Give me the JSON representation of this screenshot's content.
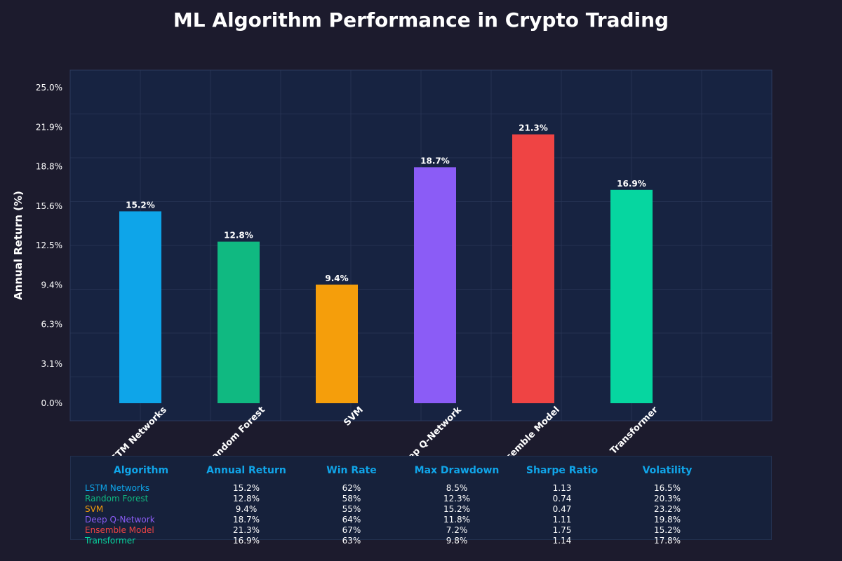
{
  "colors": {
    "background": "#1c1b2d",
    "plot_bg": "#172341",
    "grid": "#2a3858",
    "header": "#10a5e9"
  },
  "chart_data": {
    "type": "bar",
    "title": "ML Algorithm Performance in Crypto Trading",
    "xlabel": "",
    "ylabel": "Annual Return (%)",
    "ylim": [
      0,
      25
    ],
    "yticks": [
      "0.0%",
      "3.1%",
      "6.3%",
      "9.4%",
      "12.5%",
      "15.6%",
      "18.8%",
      "21.9%",
      "25.0%"
    ],
    "categories": [
      "LSTM Networks",
      "Random Forest",
      "SVM",
      "Deep Q-Network",
      "Ensemble Model",
      "Transformer"
    ],
    "values": [
      15.2,
      12.8,
      9.4,
      18.7,
      21.3,
      16.9
    ],
    "data_labels": [
      "15.2%",
      "12.8%",
      "9.4%",
      "18.7%",
      "21.3%",
      "16.9%"
    ],
    "bar_colors": [
      "#0ea5e9",
      "#10b981",
      "#f59e0b",
      "#8b5cf6",
      "#ef4444",
      "#06d6a0"
    ],
    "grid": true
  },
  "table": {
    "headers": [
      "Algorithm",
      "Annual Return",
      "Win Rate",
      "Max Drawdown",
      "Sharpe Ratio",
      "Volatility"
    ],
    "rows": [
      [
        "LSTM Networks",
        "15.2%",
        "62%",
        "8.5%",
        "1.13",
        "16.5%"
      ],
      [
        "Random Forest",
        "12.8%",
        "58%",
        "12.3%",
        "0.74",
        "20.3%"
      ],
      [
        "SVM",
        "9.4%",
        "55%",
        "15.2%",
        "0.47",
        "23.2%"
      ],
      [
        "Deep Q-Network",
        "18.7%",
        "64%",
        "11.8%",
        "1.11",
        "19.8%"
      ],
      [
        "Ensemble Model",
        "21.3%",
        "67%",
        "7.2%",
        "1.75",
        "15.2%"
      ],
      [
        "Transformer",
        "16.9%",
        "63%",
        "9.8%",
        "1.14",
        "17.8%"
      ]
    ]
  }
}
